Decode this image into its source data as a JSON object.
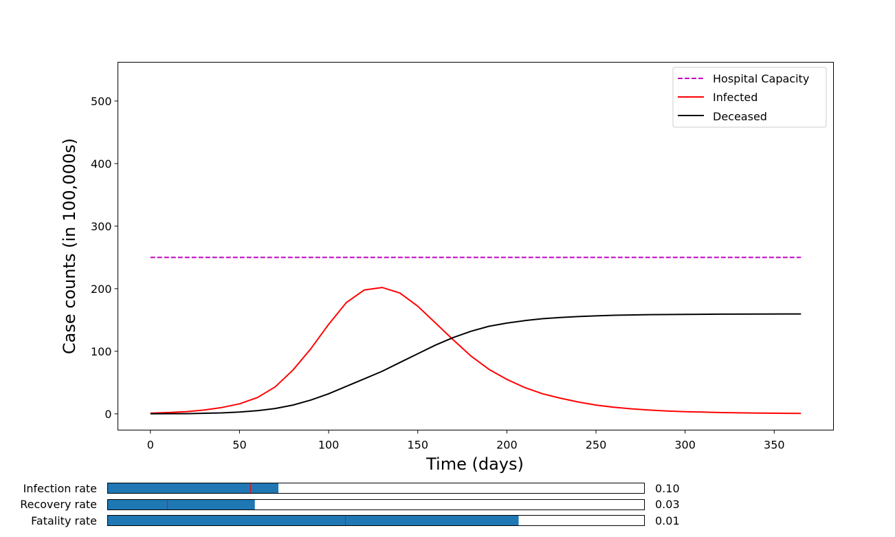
{
  "chart_data": {
    "type": "line",
    "title": "",
    "xlabel": "Time (days)",
    "ylabel": "Case counts (in 100,000s)",
    "xlim": [
      -18.25,
      383.25
    ],
    "ylim": [
      -26,
      562
    ],
    "xticks": [
      0,
      50,
      100,
      150,
      200,
      250,
      300,
      350
    ],
    "yticks": [
      0,
      100,
      200,
      300,
      400,
      500
    ],
    "grid": false,
    "legend_position": "top-right",
    "series": [
      {
        "name": "Hospital Capacity",
        "color": "#bf00bf",
        "style": "dashed",
        "x": [
          0,
          365
        ],
        "y": [
          250,
          250
        ]
      },
      {
        "name": "Infected",
        "color": "#ff0000",
        "style": "solid",
        "x": [
          0,
          10,
          20,
          30,
          40,
          50,
          60,
          70,
          80,
          90,
          100,
          110,
          120,
          130,
          140,
          150,
          160,
          170,
          180,
          190,
          200,
          210,
          220,
          230,
          240,
          250,
          260,
          270,
          280,
          290,
          300,
          320,
          340,
          365
        ],
        "y": [
          1,
          2,
          3.5,
          6,
          10,
          16,
          26,
          43,
          70,
          104,
          143,
          178,
          198,
          202,
          193,
          172,
          145,
          118,
          92,
          71,
          55,
          42,
          32,
          25,
          19,
          14,
          10.5,
          8,
          6,
          4.5,
          3.5,
          2,
          1.2,
          0.7
        ]
      },
      {
        "name": "Deceased",
        "color": "#000000",
        "style": "solid",
        "x": [
          0,
          20,
          40,
          50,
          60,
          70,
          80,
          90,
          100,
          110,
          120,
          130,
          140,
          150,
          160,
          170,
          180,
          190,
          200,
          210,
          220,
          230,
          240,
          250,
          260,
          280,
          300,
          320,
          340,
          365
        ],
        "y": [
          0,
          0.3,
          1.5,
          2.8,
          5,
          8.5,
          14,
          22,
          32,
          44,
          56,
          68,
          82,
          96,
          110,
          122,
          132,
          140,
          145,
          149,
          152,
          154,
          155.5,
          156.5,
          157.5,
          158.5,
          159,
          159.3,
          159.5,
          159.6
        ]
      }
    ]
  },
  "sliders": [
    {
      "label": "Infection rate",
      "value_text": "0.10",
      "fill_fraction": 0.318,
      "init_fraction": 0.266,
      "color": "#1f77b4"
    },
    {
      "label": "Recovery rate",
      "value_text": "0.03",
      "fill_fraction": 0.274,
      "init_fraction": 0.111,
      "color": "#1f77b4"
    },
    {
      "label": "Fatality rate",
      "value_text": "0.01",
      "fill_fraction": 0.766,
      "init_fraction": 0.443,
      "color": "#1f77b4"
    }
  ]
}
